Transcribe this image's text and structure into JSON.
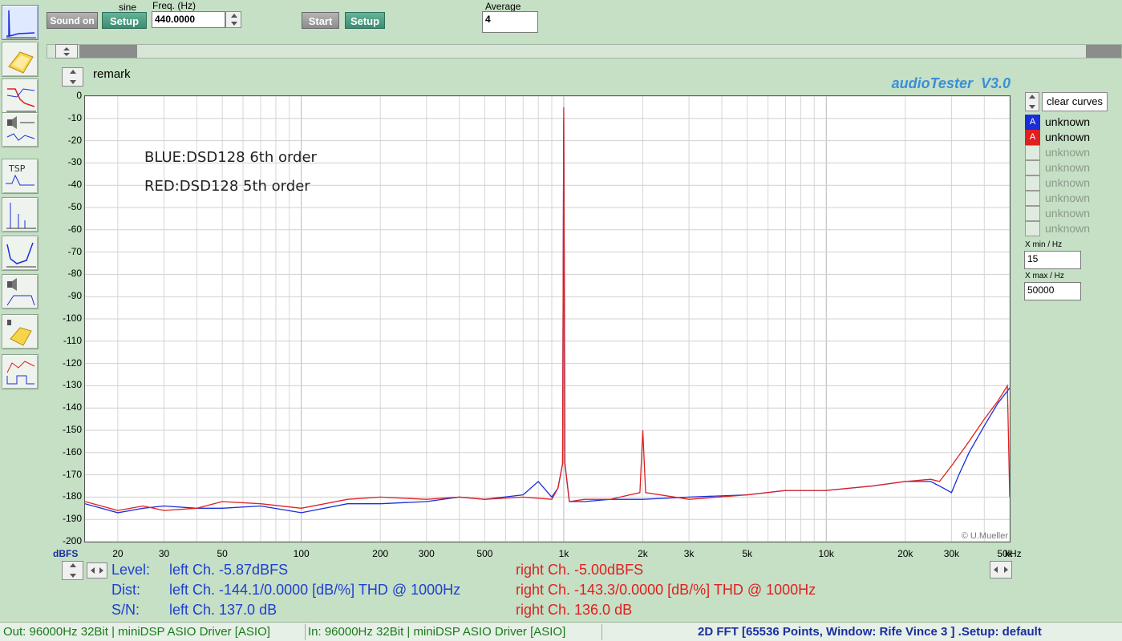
{
  "toolbar": {
    "sound_label": "Sound on",
    "sine_label": "sine",
    "setup1_label": "Setup",
    "freq_label": "Freq. (Hz)",
    "freq_value": "440.0000",
    "start_label": "Start",
    "setup2_label": "Setup",
    "average_label": "Average",
    "average_value": "4"
  },
  "remark_label": "remark",
  "app_title": "audioTester  V3.0",
  "annotations": {
    "line1": "BLUE:DSD128 6th order",
    "line2": "RED:DSD128 5th order"
  },
  "watermark": "© U.Mueller",
  "legend": {
    "clear_label": "clear curves",
    "entries": [
      {
        "tag": "A",
        "label": "unknown",
        "color": "#1a2ed8"
      },
      {
        "tag": "A",
        "label": "unknown",
        "color": "#e02020"
      },
      {
        "tag": "",
        "label": "unknown",
        "color": ""
      },
      {
        "tag": "",
        "label": "unknown",
        "color": ""
      },
      {
        "tag": "",
        "label": "unknown",
        "color": ""
      },
      {
        "tag": "",
        "label": "unknown",
        "color": ""
      },
      {
        "tag": "",
        "label": "unknown",
        "color": ""
      },
      {
        "tag": "",
        "label": "unknown",
        "color": ""
      }
    ],
    "xmin_label": "X min / Hz",
    "xmin_value": "15",
    "xmax_label": "X max / Hz",
    "xmax_value": "50000"
  },
  "axis": {
    "ylabel": "dBFS",
    "xunit": "kHz",
    "y_ticks": [
      "0",
      "-10",
      "-20",
      "-30",
      "-40",
      "-50",
      "-60",
      "-70",
      "-80",
      "-90",
      "-100",
      "-110",
      "-120",
      "-130",
      "-140",
      "-150",
      "-160",
      "-170",
      "-180",
      "-190",
      "-200"
    ],
    "x_ticks": [
      {
        "f": 20,
        "label": "20"
      },
      {
        "f": 30,
        "label": "30"
      },
      {
        "f": 50,
        "label": "50"
      },
      {
        "f": 100,
        "label": "100"
      },
      {
        "f": 200,
        "label": "200"
      },
      {
        "f": 300,
        "label": "300"
      },
      {
        "f": 500,
        "label": "500"
      },
      {
        "f": 1000,
        "label": "1k"
      },
      {
        "f": 2000,
        "label": "2k"
      },
      {
        "f": 3000,
        "label": "3k"
      },
      {
        "f": 5000,
        "label": "5k"
      },
      {
        "f": 10000,
        "label": "10k"
      },
      {
        "f": 20000,
        "label": "20k"
      },
      {
        "f": 30000,
        "label": "30k"
      },
      {
        "f": 50000,
        "label": "50k"
      }
    ]
  },
  "measurements": {
    "level_label": "Level:",
    "dist_label": "Dist:",
    "sn_label": "S/N:",
    "level_left": "left Ch. -5.87dBFS",
    "level_right": "right Ch. -5.00dBFS",
    "dist_left": "left Ch. -144.1/0.0000 [dB/%] THD @ 1000Hz",
    "dist_right": "right Ch. -143.3/0.0000 [dB/%] THD @ 1000Hz",
    "sn_left": "left Ch. 137.0 dB",
    "sn_right": "right Ch. 136.0 dB"
  },
  "status": {
    "out": "Out: 96000Hz 32Bit  | miniDSP ASIO Driver [ASIO]",
    "in": "In: 96000Hz 32Bit  | miniDSP ASIO Driver [ASIO]",
    "mode": "2D FFT [65536 Points, Window: Rife Vince 3 ]  .Setup:  default"
  },
  "chart_data": {
    "type": "line",
    "title": "",
    "xlabel": "",
    "ylabel": "dBFS",
    "xscale": "log",
    "xlim": [
      15,
      50000
    ],
    "ylim": [
      -200,
      0
    ],
    "grid": true,
    "series": [
      {
        "name": "BLUE:DSD128 6th order",
        "color": "#1a2ed8",
        "x": [
          15,
          20,
          25,
          30,
          40,
          50,
          70,
          100,
          150,
          200,
          300,
          400,
          500,
          700,
          800,
          900,
          950,
          990,
          1000,
          1010,
          1050,
          1200,
          1500,
          2000,
          3000,
          5000,
          7000,
          10000,
          15000,
          20000,
          25000,
          28000,
          30000,
          32000,
          35000,
          40000,
          45000,
          50000
        ],
        "y": [
          -183,
          -187,
          -185,
          -184,
          -185,
          -185,
          -184,
          -187,
          -183,
          -183,
          -182,
          -180,
          -181,
          -179,
          -173,
          -180,
          -176,
          -165,
          -10,
          -165,
          -182,
          -182,
          -181,
          -181,
          -180,
          -179,
          -177,
          -177,
          -175,
          -173,
          -173,
          -176,
          -178,
          -170,
          -160,
          -148,
          -138,
          -131
        ]
      },
      {
        "name": "RED:DSD128 5th order",
        "color": "#e02020",
        "x": [
          15,
          20,
          25,
          30,
          40,
          50,
          70,
          100,
          150,
          200,
          300,
          400,
          500,
          700,
          900,
          950,
          990,
          1000,
          1010,
          1050,
          1200,
          1500,
          1950,
          2000,
          2050,
          3000,
          5000,
          7000,
          10000,
          15000,
          20000,
          25000,
          27000,
          30000,
          35000,
          40000,
          45000,
          49000,
          50000
        ],
        "y": [
          -182,
          -186,
          -184,
          -186,
          -185,
          -182,
          -183,
          -185,
          -181,
          -180,
          -181,
          -180,
          -181,
          -180,
          -181,
          -176,
          -165,
          -5,
          -165,
          -182,
          -181,
          -181,
          -178,
          -150,
          -178,
          -181,
          -179,
          -177,
          -177,
          -175,
          -173,
          -172,
          -173,
          -166,
          -155,
          -145,
          -137,
          -130,
          -180
        ]
      }
    ]
  }
}
